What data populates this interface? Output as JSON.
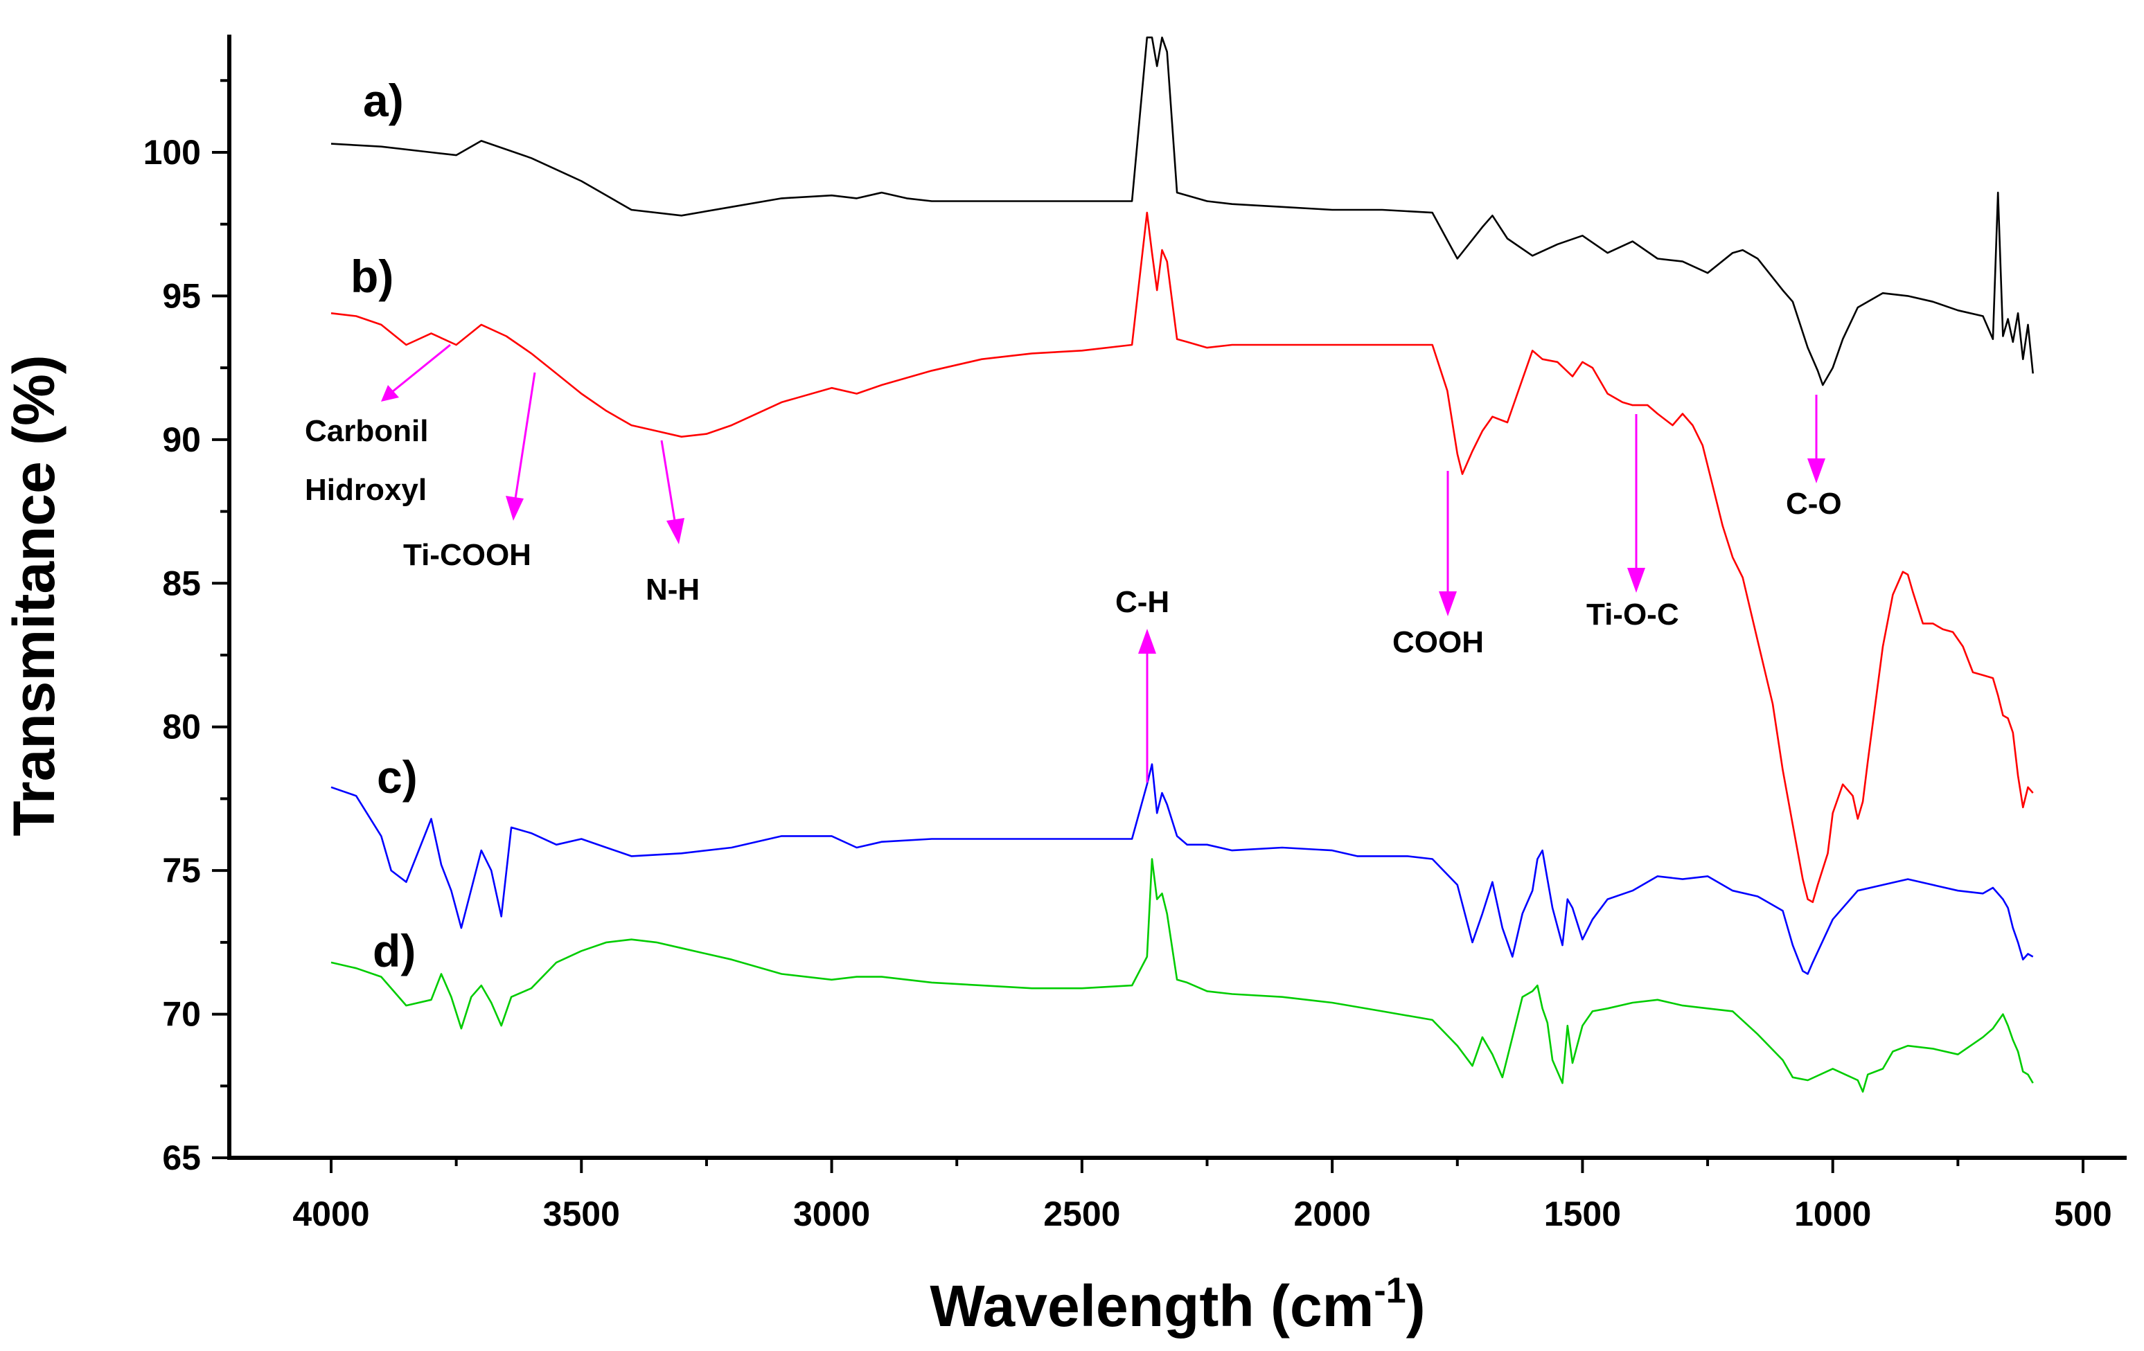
{
  "chart_data": {
    "type": "line",
    "title": "",
    "xlabel": "Wavelength (cm",
    "xlabel_sup": "-1",
    "xlabel_end": ")",
    "ylabel": "Transmitance (%)",
    "xlim": [
      4200,
      500
    ],
    "ylim": [
      65,
      104
    ],
    "x_ticks": [
      4000,
      3500,
      3000,
      2500,
      2000,
      1500,
      1000,
      500
    ],
    "y_ticks": [
      65,
      70,
      75,
      80,
      85,
      90,
      95,
      100
    ],
    "series": [
      {
        "name": "a)",
        "color": "#000000",
        "x": [
          4000,
          3900,
          3800,
          3750,
          3700,
          3600,
          3500,
          3400,
          3300,
          3200,
          3100,
          3000,
          2950,
          2900,
          2850,
          2800,
          2700,
          2600,
          2500,
          2400,
          2370,
          2360,
          2350,
          2340,
          2330,
          2310,
          2290,
          2250,
          2200,
          2100,
          2000,
          1900,
          1800,
          1750,
          1700,
          1680,
          1650,
          1600,
          1550,
          1500,
          1450,
          1400,
          1350,
          1300,
          1250,
          1200,
          1180,
          1150,
          1100,
          1080,
          1050,
          1030,
          1020,
          1000,
          980,
          950,
          900,
          850,
          800,
          750,
          700,
          680,
          670,
          660,
          650,
          640,
          630,
          620,
          610,
          600
        ],
        "values": [
          100.3,
          100.2,
          100,
          99.9,
          100.4,
          99.8,
          99,
          98,
          97.8,
          98.1,
          98.4,
          98.5,
          98.4,
          98.6,
          98.4,
          98.3,
          98.3,
          98.3,
          98.3,
          98.3,
          104,
          104,
          103,
          104,
          103.5,
          98.6,
          98.5,
          98.3,
          98.2,
          98.1,
          98,
          98,
          97.9,
          96.3,
          97.4,
          97.8,
          97,
          96.4,
          96.8,
          97.1,
          96.5,
          96.9,
          96.3,
          96.2,
          95.8,
          96.5,
          96.6,
          96.3,
          95.2,
          94.8,
          93.2,
          92.4,
          91.9,
          92.5,
          93.5,
          94.6,
          95.1,
          95,
          94.8,
          94.5,
          94.3,
          93.5,
          98.6,
          93.6,
          94.2,
          93.4,
          94.4,
          92.8,
          94,
          92.3
        ]
      },
      {
        "name": "b)",
        "color": "#ff0000",
        "x": [
          4000,
          3950,
          3900,
          3850,
          3800,
          3750,
          3700,
          3650,
          3600,
          3550,
          3500,
          3450,
          3400,
          3350,
          3300,
          3250,
          3200,
          3100,
          3000,
          2950,
          2900,
          2800,
          2700,
          2600,
          2500,
          2400,
          2370,
          2360,
          2350,
          2340,
          2330,
          2310,
          2290,
          2250,
          2200,
          2100,
          2000,
          1900,
          1800,
          1770,
          1750,
          1740,
          1720,
          1700,
          1680,
          1650,
          1620,
          1600,
          1580,
          1550,
          1520,
          1500,
          1480,
          1450,
          1420,
          1400,
          1370,
          1350,
          1320,
          1300,
          1280,
          1260,
          1240,
          1220,
          1200,
          1180,
          1150,
          1120,
          1100,
          1080,
          1060,
          1050,
          1040,
          1030,
          1010,
          1000,
          980,
          960,
          950,
          940,
          930,
          900,
          880,
          860,
          850,
          840,
          820,
          800,
          780,
          760,
          740,
          720,
          700,
          680,
          670,
          660,
          650,
          640,
          630,
          620,
          610,
          600
        ],
        "values": [
          94.4,
          94.3,
          94,
          93.3,
          93.7,
          93.3,
          94,
          93.6,
          93,
          92.3,
          91.6,
          91,
          90.5,
          90.3,
          90.1,
          90.2,
          90.5,
          91.3,
          91.8,
          91.6,
          91.9,
          92.4,
          92.8,
          93,
          93.1,
          93.3,
          97.9,
          96.5,
          95.2,
          96.6,
          96.2,
          93.5,
          93.4,
          93.2,
          93.3,
          93.3,
          93.3,
          93.3,
          93.3,
          91.7,
          89.5,
          88.8,
          89.6,
          90.3,
          90.8,
          90.6,
          92.1,
          93.1,
          92.8,
          92.7,
          92.2,
          92.7,
          92.5,
          91.6,
          91.3,
          91.2,
          91.2,
          90.9,
          90.5,
          90.9,
          90.5,
          89.8,
          88.4,
          87,
          85.9,
          85.2,
          83,
          80.8,
          78.5,
          76.6,
          74.7,
          74,
          73.9,
          74.5,
          75.6,
          77,
          78,
          77.6,
          76.8,
          77.4,
          78.8,
          82.8,
          84.6,
          85.4,
          85.3,
          84.7,
          83.6,
          83.6,
          83.4,
          83.3,
          82.8,
          81.9,
          81.8,
          81.7,
          81.1,
          80.4,
          80.3,
          79.8,
          78.3,
          77.2,
          77.9,
          77.7
        ]
      },
      {
        "name": "c)",
        "color": "#0000ff",
        "x": [
          4000,
          3950,
          3900,
          3880,
          3850,
          3800,
          3780,
          3760,
          3740,
          3700,
          3680,
          3660,
          3640,
          3600,
          3550,
          3500,
          3450,
          3400,
          3300,
          3200,
          3100,
          3000,
          2950,
          2900,
          2800,
          2700,
          2600,
          2500,
          2400,
          2370,
          2360,
          2350,
          2340,
          2330,
          2310,
          2290,
          2250,
          2200,
          2100,
          2000,
          1950,
          1900,
          1850,
          1800,
          1750,
          1720,
          1700,
          1680,
          1660,
          1640,
          1620,
          1600,
          1590,
          1580,
          1570,
          1560,
          1540,
          1530,
          1520,
          1500,
          1480,
          1450,
          1400,
          1350,
          1300,
          1250,
          1200,
          1150,
          1100,
          1080,
          1060,
          1050,
          1040,
          1000,
          950,
          900,
          850,
          800,
          750,
          700,
          680,
          660,
          650,
          640,
          630,
          620,
          610,
          600
        ],
        "values": [
          77.9,
          77.6,
          76.2,
          75,
          74.6,
          76.8,
          75.2,
          74.3,
          73,
          75.7,
          75,
          73.4,
          76.5,
          76.3,
          75.9,
          76.1,
          75.8,
          75.5,
          75.6,
          75.8,
          76.2,
          76.2,
          75.8,
          76,
          76.1,
          76.1,
          76.1,
          76.1,
          76.1,
          78,
          78.7,
          77,
          77.7,
          77.3,
          76.2,
          75.9,
          75.9,
          75.7,
          75.8,
          75.7,
          75.5,
          75.5,
          75.5,
          75.4,
          74.5,
          72.5,
          73.5,
          74.6,
          73,
          72,
          73.5,
          74.3,
          75.4,
          75.7,
          74.7,
          73.7,
          72.4,
          74,
          73.7,
          72.6,
          73.3,
          74,
          74.3,
          74.8,
          74.7,
          74.8,
          74.3,
          74.1,
          73.6,
          72.4,
          71.5,
          71.4,
          71.8,
          73.3,
          74.3,
          74.5,
          74.7,
          74.5,
          74.3,
          74.2,
          74.4,
          74,
          73.7,
          73,
          72.5,
          71.9,
          72.1,
          72
        ]
      },
      {
        "name": "d)",
        "color": "#00cc00",
        "x": [
          4000,
          3950,
          3900,
          3850,
          3800,
          3780,
          3760,
          3740,
          3720,
          3700,
          3680,
          3660,
          3640,
          3600,
          3550,
          3500,
          3450,
          3400,
          3350,
          3300,
          3200,
          3100,
          3000,
          2950,
          2900,
          2800,
          2700,
          2600,
          2500,
          2400,
          2370,
          2360,
          2350,
          2340,
          2330,
          2310,
          2290,
          2250,
          2200,
          2100,
          2000,
          1900,
          1800,
          1750,
          1720,
          1700,
          1680,
          1660,
          1640,
          1620,
          1600,
          1590,
          1580,
          1570,
          1560,
          1540,
          1530,
          1520,
          1500,
          1480,
          1450,
          1400,
          1350,
          1300,
          1250,
          1200,
          1150,
          1100,
          1080,
          1050,
          1000,
          950,
          940,
          930,
          900,
          880,
          850,
          800,
          750,
          700,
          680,
          660,
          650,
          640,
          630,
          620,
          610,
          600
        ],
        "values": [
          71.8,
          71.6,
          71.3,
          70.3,
          70.5,
          71.4,
          70.6,
          69.5,
          70.6,
          71,
          70.4,
          69.6,
          70.6,
          70.9,
          71.8,
          72.2,
          72.5,
          72.6,
          72.5,
          72.3,
          71.9,
          71.4,
          71.2,
          71.3,
          71.3,
          71.1,
          71,
          70.9,
          70.9,
          71,
          72,
          75.4,
          74,
          74.2,
          73.5,
          71.2,
          71.1,
          70.8,
          70.7,
          70.6,
          70.4,
          70.1,
          69.8,
          68.9,
          68.2,
          69.2,
          68.6,
          67.8,
          69.2,
          70.6,
          70.8,
          71,
          70.2,
          69.7,
          68.4,
          67.6,
          69.6,
          68.3,
          69.6,
          70.1,
          70.2,
          70.4,
          70.5,
          70.3,
          70.2,
          70.1,
          69.3,
          68.4,
          67.8,
          67.7,
          68.1,
          67.7,
          67.3,
          67.9,
          68.1,
          68.7,
          68.9,
          68.8,
          68.6,
          69.2,
          69.5,
          70,
          69.6,
          69.1,
          68.7,
          68,
          67.9,
          67.6
        ]
      }
    ],
    "annotations": {
      "carbonil": "Carbonil",
      "hidroxyl": "Hidroxyl",
      "ti_cooh": "Ti-COOH",
      "n_h": "N-H",
      "c_h": "C-H",
      "cooh": "COOH",
      "ti_o_c": "Ti-O-C",
      "c_o": "C-O"
    }
  }
}
